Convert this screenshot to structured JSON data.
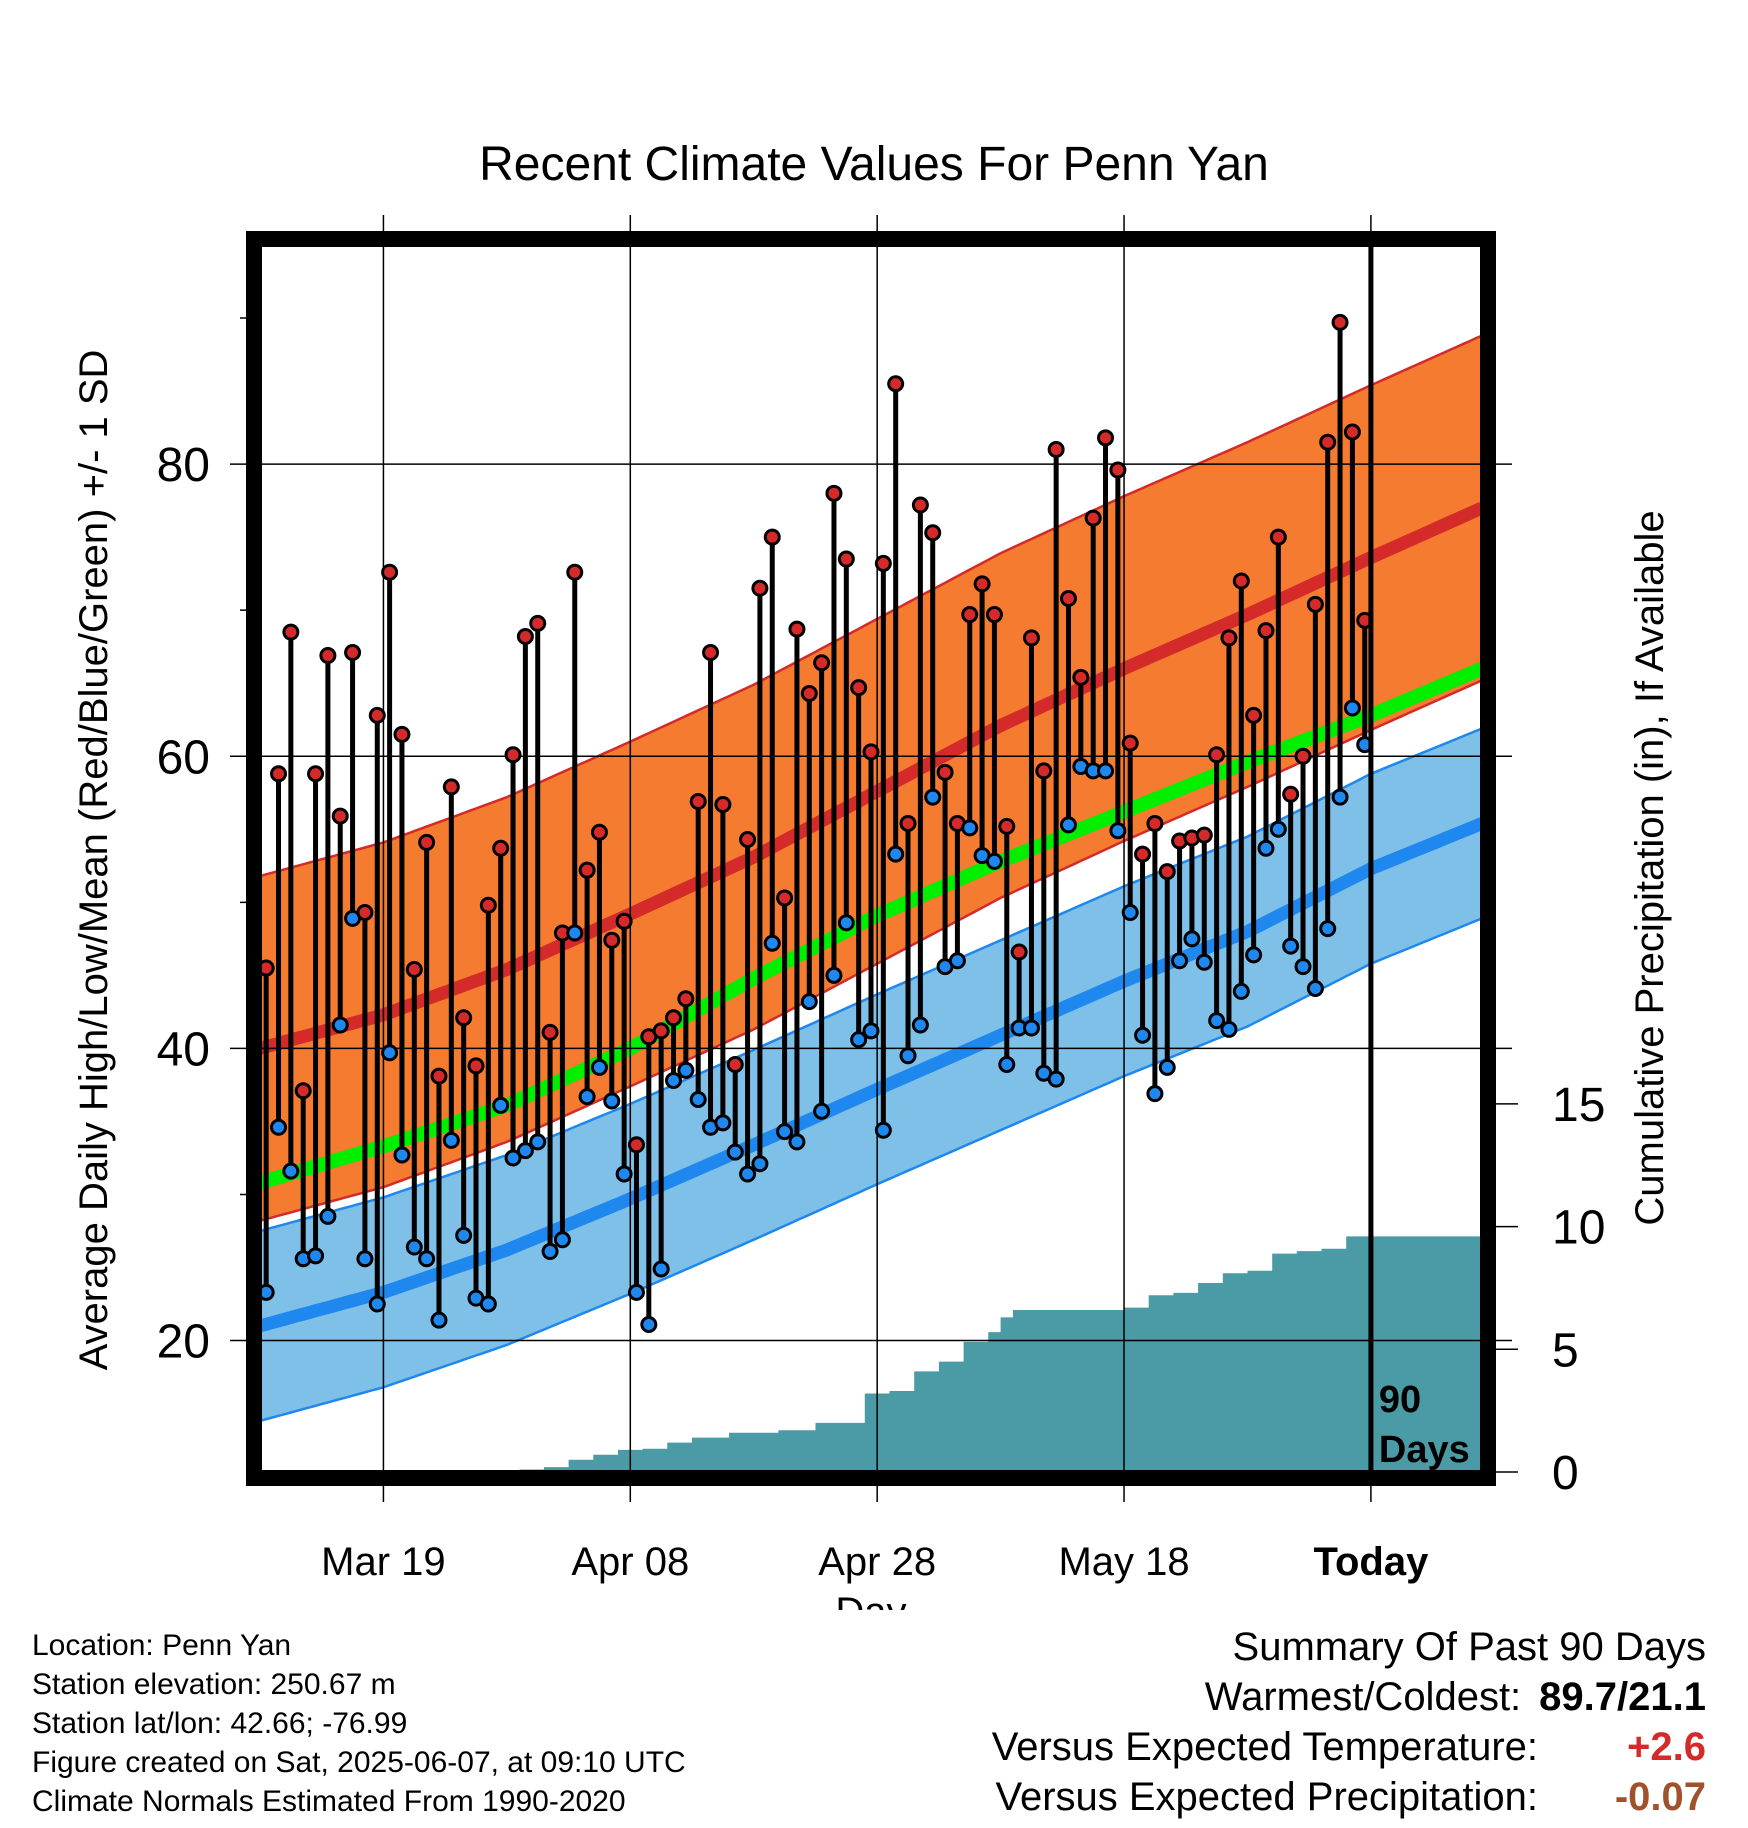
{
  "chart_data": {
    "type": "line",
    "title": "Recent Climate Values For Penn Yan",
    "xlabel": "Day",
    "ylabel": "Average Daily High/Low/Mean (Red/Blue/Green) +/- 1 SD",
    "ylabel_right": "Cumulative Precipitation (in), If Available",
    "x_tick_labels": [
      "Mar 19",
      "Apr 08",
      "Apr 28",
      "May 18",
      "Today"
    ],
    "y_ticks": [
      20,
      40,
      60,
      80
    ],
    "y_ticks_right": [
      0,
      5,
      10,
      15
    ],
    "ylim": [
      11,
      95
    ],
    "ylim_right": [
      0,
      50
    ],
    "xlim_days": [
      -90,
      9
    ],
    "today_marker_label": [
      "90",
      "Days"
    ],
    "grid": true,
    "colors": {
      "high_band": "#f47b30",
      "high_line": "#d42a2a",
      "low_band": "#7ec0e8",
      "low_line": "#1e88ee",
      "mean_line": "#00ee00",
      "precip_fill": "#4a9ba6",
      "obs_high_dot": "#d42a2a",
      "obs_low_dot": "#1e88ee"
    },
    "normal_high": {
      "x": [
        -90,
        -80,
        -70,
        -60,
        -50,
        -40,
        -30,
        -20,
        -10,
        0,
        9
      ],
      "mean": [
        40.0,
        42.3,
        45.4,
        49.2,
        53.1,
        57.6,
        62.1,
        66.0,
        69.7,
        73.6,
        77.0
      ],
      "sd": 11.8
    },
    "normal_low": {
      "x": [
        -90,
        -80,
        -70,
        -60,
        -50,
        -40,
        -30,
        -20,
        -10,
        0,
        9
      ],
      "mean": [
        21.0,
        23.3,
        26.2,
        29.7,
        33.4,
        37.2,
        40.9,
        44.6,
        48.0,
        52.3,
        55.4
      ],
      "sd": 6.5
    },
    "normal_mean": {
      "x": [
        -90,
        -80,
        -70,
        -60,
        -50,
        -40,
        -30,
        -20,
        -10,
        0,
        9
      ],
      "values": [
        30.8,
        33.3,
        36.1,
        40.0,
        44.8,
        49.1,
        52.8,
        56.2,
        59.6,
        62.8,
        66.0
      ]
    },
    "observed": {
      "x": [
        -90,
        -89,
        -88,
        -87,
        -86,
        -85,
        -84,
        -83,
        -82,
        -81,
        -80,
        -79,
        -78,
        -77,
        -76,
        -75,
        -74,
        -73,
        -72,
        -71,
        -70,
        -69,
        -68,
        -67,
        -66,
        -65,
        -64,
        -63,
        -62,
        -61,
        -60,
        -59,
        -58,
        -57,
        -56,
        -55,
        -54,
        -53,
        -52,
        -51,
        -50,
        -49,
        -48,
        -47,
        -46,
        -45,
        -44,
        -43,
        -42,
        -41,
        -40,
        -39,
        -38,
        -37,
        -36,
        -35,
        -34,
        -33,
        -32,
        -31,
        -30,
        -29,
        -28,
        -27,
        -26,
        -25,
        -24,
        -23,
        -22,
        -21,
        -20,
        -19,
        -18,
        -17,
        -16,
        -15,
        -14,
        -13,
        -12,
        -11,
        -10,
        -9,
        -8,
        -7,
        -6,
        -5,
        -4,
        -3,
        -2,
        -1
      ],
      "high": [
        45.5,
        58.8,
        68.5,
        37.1,
        58.8,
        66.9,
        55.9,
        67.1,
        49.3,
        62.8,
        72.6,
        61.5,
        45.4,
        54.1,
        38.1,
        57.9,
        42.1,
        38.8,
        49.8,
        53.7,
        60.1,
        68.2,
        69.1,
        41.1,
        47.9,
        72.6,
        52.2,
        54.8,
        47.4,
        48.7,
        33.4,
        40.8,
        41.2,
        42.1,
        43.4,
        56.9,
        67.1,
        56.7,
        38.9,
        54.3,
        71.5,
        75.0,
        50.3,
        68.7,
        64.3,
        66.4,
        78.0,
        73.5,
        64.7,
        60.3,
        73.2,
        85.5,
        55.4,
        77.2,
        75.3,
        58.9,
        55.4,
        69.7,
        71.8,
        69.7,
        55.2,
        46.6,
        68.1,
        59.0,
        81.0,
        70.8,
        65.4,
        76.3,
        81.8,
        79.6,
        60.9,
        53.3,
        55.4,
        52.1,
        54.2,
        54.4,
        54.6,
        60.1,
        68.1,
        72.0,
        62.8,
        68.6,
        75.0,
        57.4,
        60.0,
        70.4,
        81.5,
        89.7,
        82.2,
        69.3
      ],
      "low": [
        23.3,
        34.6,
        31.6,
        25.6,
        25.8,
        28.5,
        41.6,
        48.9,
        25.6,
        22.5,
        39.7,
        32.7,
        26.4,
        25.6,
        21.4,
        33.7,
        27.2,
        22.9,
        22.5,
        36.1,
        32.5,
        33.0,
        33.6,
        26.1,
        26.9,
        47.9,
        36.7,
        38.7,
        36.4,
        31.4,
        23.3,
        21.1,
        24.9,
        37.8,
        38.5,
        36.5,
        34.6,
        34.9,
        32.9,
        31.4,
        32.1,
        47.2,
        34.3,
        33.6,
        43.2,
        35.7,
        45.0,
        48.6,
        40.6,
        41.2,
        34.4,
        53.3,
        39.5,
        41.6,
        57.2,
        45.6,
        46.0,
        55.1,
        53.2,
        52.8,
        38.9,
        41.4,
        41.4,
        38.3,
        37.9,
        55.3,
        59.3,
        59.0,
        59.0,
        54.9,
        49.3,
        40.9,
        36.9,
        38.7,
        46.0,
        47.5,
        45.9,
        41.9,
        41.3,
        43.9,
        46.4,
        53.7,
        55.0,
        47.0,
        45.6,
        44.1,
        48.2,
        57.2,
        63.3,
        60.8
      ]
    },
    "cumulative_precip": {
      "x": [
        -90,
        -72,
        -69,
        -67,
        -65,
        -63,
        -61,
        -59,
        -57,
        -55,
        -52,
        -48,
        -45,
        -41,
        -39,
        -37,
        -35,
        -33,
        -31,
        -30,
        -29,
        -28,
        -20,
        -18,
        -16,
        -14,
        -12,
        -10,
        -8,
        -6,
        -4,
        -2,
        9
      ],
      "values": [
        0,
        0,
        0.1,
        0.2,
        0.5,
        0.7,
        0.9,
        0.95,
        1.2,
        1.4,
        1.6,
        1.7,
        2.0,
        3.2,
        3.3,
        4.1,
        4.5,
        5.3,
        5.7,
        6.3,
        6.6,
        6.6,
        6.7,
        7.2,
        7.3,
        7.7,
        8.1,
        8.2,
        8.9,
        9.0,
        9.1,
        9.6,
        9.6
      ]
    }
  },
  "info": {
    "location": "Location: Penn Yan",
    "elevation": "Station elevation: 250.67 m",
    "latlon": "Station lat/lon: 42.66; -76.99",
    "created": "Figure created on Sat, 2025-06-07, at 09:10 UTC",
    "normals": "Climate Normals Estimated From 1990-2020"
  },
  "summary": {
    "heading": "Summary Of Past 90 Days",
    "extremes_label": "Warmest/Coldest:",
    "extremes_value": "89.7/21.1",
    "temp_label": "Versus Expected Temperature:",
    "temp_value": "+2.6",
    "temp_color": "#d42a2a",
    "precip_label": "Versus Expected Precipitation:",
    "precip_value": "-0.07",
    "precip_color": "#a0522d"
  }
}
